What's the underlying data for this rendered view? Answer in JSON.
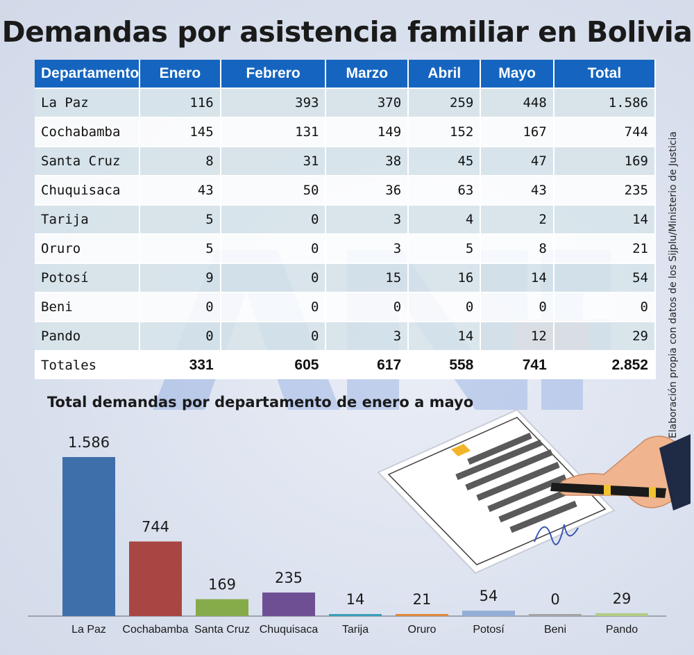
{
  "title": "Demandas por asistencia familiar en Bolivia",
  "source": "Fuente: Elaboración propia con datos de los Sijplu/Ministerio de Justicia",
  "table": {
    "headers": [
      "Departamento",
      "Enero",
      "Febrero",
      "Marzo",
      "Abril",
      "Mayo",
      "Total"
    ],
    "rows": [
      [
        "La Paz",
        "116",
        "393",
        "370",
        "259",
        "448",
        "1.586"
      ],
      [
        "Cochabamba",
        "145",
        "131",
        "149",
        "152",
        "167",
        "744"
      ],
      [
        "Santa Cruz",
        "8",
        "31",
        "38",
        "45",
        "47",
        "169"
      ],
      [
        "Chuquisaca",
        "43",
        "50",
        "36",
        "63",
        "43",
        "235"
      ],
      [
        "Tarija",
        "5",
        "0",
        "3",
        "4",
        "2",
        "14"
      ],
      [
        "Oruro",
        "5",
        "0",
        "3",
        "5",
        "8",
        "21"
      ],
      [
        "Potosí",
        "9",
        "0",
        "15",
        "16",
        "14",
        "54"
      ],
      [
        "Beni",
        "0",
        "0",
        "0",
        "0",
        "0",
        "0"
      ],
      [
        "Pando",
        "0",
        "0",
        "3",
        "14",
        "12",
        "29"
      ]
    ],
    "totals": [
      "Totales",
      "331",
      "605",
      "617",
      "558",
      "741",
      "2.852"
    ]
  },
  "chart_data": {
    "type": "bar",
    "title": "Total demandas por departamento de enero a mayo",
    "categories": [
      "La Paz",
      "Cochabamba",
      "Santa Cruz",
      "Chuquisaca",
      "Tarija",
      "Oruro",
      "Potosí",
      "Beni",
      "Pando"
    ],
    "values": [
      1586,
      744,
      169,
      235,
      14,
      21,
      54,
      0,
      29
    ],
    "value_labels": [
      "1.586",
      "744",
      "169",
      "235",
      "14",
      "21",
      "54",
      "0",
      "29"
    ],
    "colors": [
      "#3f6fab",
      "#a84643",
      "#86ab4a",
      "#6f4f94",
      "#3a9fbb",
      "#e08a3c",
      "#94aed8",
      "#a4a4a4",
      "#b1cc86"
    ],
    "ylim": [
      0,
      1586
    ],
    "grid": false,
    "legend": "none",
    "xlabel": "",
    "ylabel": ""
  }
}
